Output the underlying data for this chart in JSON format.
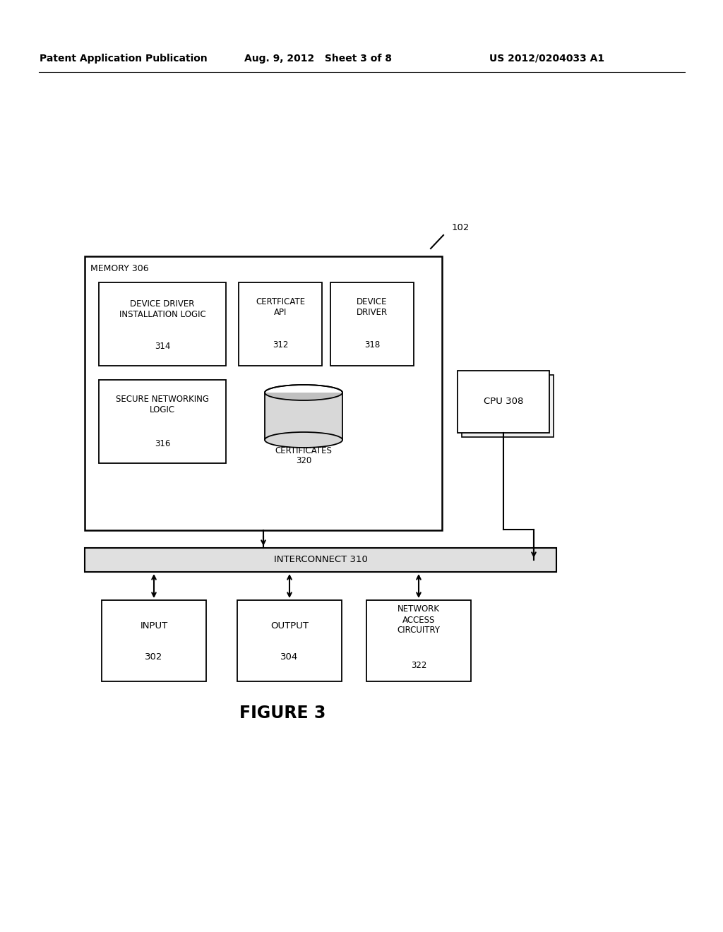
{
  "bg_color": "#ffffff",
  "header_left": "Patent Application Publication",
  "header_mid": "Aug. 9, 2012   Sheet 3 of 8",
  "header_right": "US 2012/0204033 A1",
  "figure_label": "FIGURE 3",
  "ref_102": "102",
  "memory_label": "MEMORY 306",
  "cert_api_label": "CERTFICATE\nAPI\n312",
  "device_driver_label": "DEVICE DRIVER\nINSTALLATION LOGIC\n\n314",
  "device_driver2_label": "DEVICE\nDRIVER\n318",
  "secure_net_label": "SECURE NETWORKING\nLOGIC\n\n316",
  "cpu_label": "CPU 308",
  "certs_label": "CERTIFICATES\n320",
  "interconnect_label": "INTERCONNECT 310",
  "input_label": "INPUT\n\n302",
  "output_label": "OUTPUT\n\n304",
  "network_label": "NETWORK\nACCESS\nCIRCUITRY\n322",
  "line_color": "#000000",
  "box_fill": "#ffffff",
  "inter_fill": "#e0e0e0",
  "cyl_fill": "#d8d8d8",
  "cyl_top_fill": "#c0c0c0"
}
